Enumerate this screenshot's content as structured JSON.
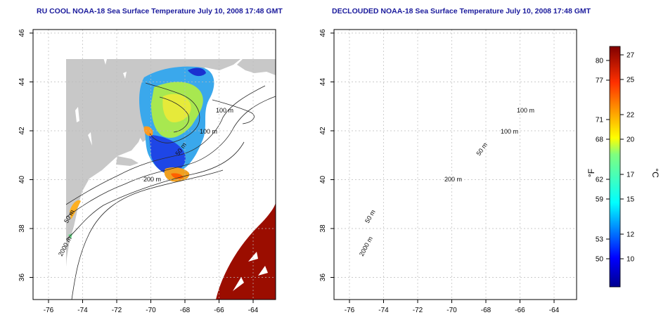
{
  "left_panel": {
    "title": "RU COOL NOAA-18 Sea Surface Temperature July 10, 2008 17:48 GMT",
    "contours": [
      "100 m",
      "100 m",
      "50 m",
      "200 m",
      "50 m",
      "2000 m"
    ]
  },
  "right_panel": {
    "title": "DECLOUDED NOAA-18 Sea Surface Temperature July 10, 2008 17:48 GMT",
    "contours": [
      "100 m",
      "100 m",
      "50 m",
      "200 m",
      "50 m",
      "2000 m"
    ]
  },
  "axes": {
    "x_ticks": [
      "-76",
      "-74",
      "-72",
      "-70",
      "-68",
      "-66",
      "-64"
    ],
    "y_ticks": [
      "46",
      "44",
      "42",
      "40",
      "38",
      "36"
    ]
  },
  "colorbar": {
    "f_label": "°F",
    "c_label": "°C",
    "f_ticks": [
      "80",
      "77",
      "71",
      "68",
      "62",
      "59",
      "53",
      "50"
    ],
    "c_ticks": [
      "27",
      "25",
      "22",
      "20",
      "17",
      "15",
      "12",
      "10"
    ]
  },
  "colors": {
    "land": "#c8c8c8",
    "title": "#1a1a9c",
    "warm": "#9b0d00",
    "cool": "#1e46e6"
  }
}
